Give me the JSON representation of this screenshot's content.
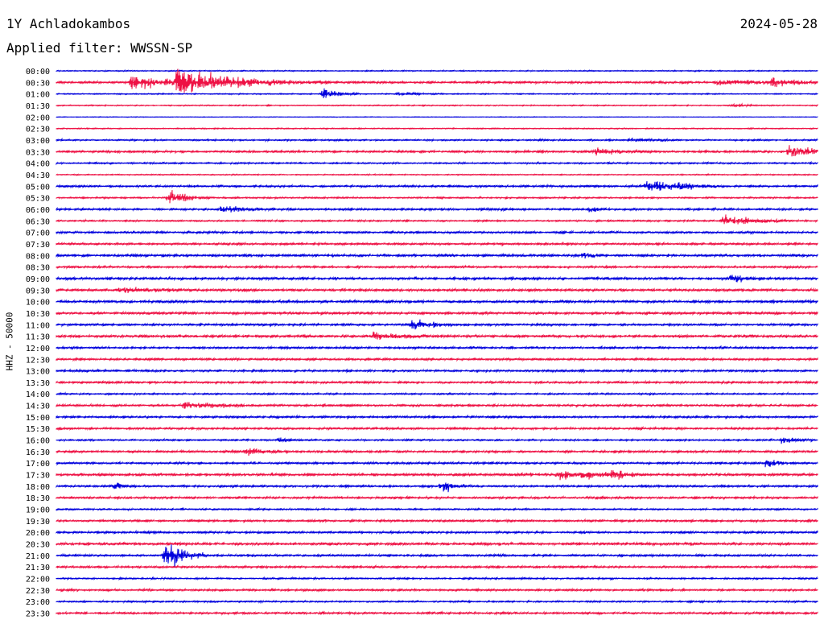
{
  "header": {
    "station": "1Y Achladokambos",
    "date": "2024-05-28",
    "filter": "Applied filter: WWSSN-SP"
  },
  "chart_data": {
    "type": "line",
    "title": "1Y Achladokambos",
    "ylabel": "HHZ - 50000",
    "colors": [
      "#0000dd",
      "#ee1144"
    ],
    "tick_labels": [
      "00:00",
      "00:30",
      "01:00",
      "01:30",
      "02:00",
      "02:30",
      "03:00",
      "03:30",
      "04:00",
      "04:30",
      "05:00",
      "05:30",
      "06:00",
      "06:30",
      "07:00",
      "07:30",
      "08:00",
      "08:30",
      "09:00",
      "09:30",
      "10:00",
      "10:30",
      "11:00",
      "11:30",
      "12:00",
      "12:30",
      "13:00",
      "13:30",
      "14:00",
      "14:30",
      "15:00",
      "15:30",
      "16:00",
      "16:30",
      "17:00",
      "17:30",
      "18:00",
      "18:30",
      "19:00",
      "19:30",
      "20:00",
      "20:30",
      "21:00",
      "21:30",
      "22:00",
      "22:30",
      "23:00",
      "23:30"
    ],
    "x_unit": "minutes within 30-minute trace",
    "xlim": [
      0,
      30
    ],
    "noise_level": [
      1,
      2,
      1,
      1,
      0.5,
      1,
      1.5,
      2,
      1.5,
      1,
      2,
      1.5,
      2,
      1.5,
      2,
      2,
      2.5,
      2,
      2.5,
      2.5,
      2.5,
      2.5,
      2,
      2.5,
      2,
      2,
      2,
      2,
      1.5,
      2,
      2,
      2,
      1.5,
      2,
      2,
      2.5,
      2,
      2,
      1.5,
      2,
      2,
      2.5,
      2,
      2,
      1.5,
      2,
      1.5,
      2
    ],
    "events": [
      {
        "trace": "00:30",
        "t": 4.8,
        "amp": 22,
        "dur": 2.0
      },
      {
        "trace": "00:30",
        "t": 3.0,
        "amp": 14,
        "dur": 1.2
      },
      {
        "trace": "00:30",
        "t": 28.2,
        "amp": 7,
        "dur": 0.8
      },
      {
        "trace": "00:30",
        "t": 26.0,
        "amp": 3,
        "dur": 3.0
      },
      {
        "trace": "01:00",
        "t": 10.5,
        "amp": 9,
        "dur": 0.5
      },
      {
        "trace": "01:00",
        "t": 13.5,
        "amp": 3,
        "dur": 0.6
      },
      {
        "trace": "01:30",
        "t": 26.7,
        "amp": 3,
        "dur": 0.5
      },
      {
        "trace": "03:00",
        "t": 22.6,
        "amp": 3,
        "dur": 0.8
      },
      {
        "trace": "03:30",
        "t": 21.3,
        "amp": 6,
        "dur": 0.8
      },
      {
        "trace": "03:30",
        "t": 28.9,
        "amp": 12,
        "dur": 0.8
      },
      {
        "trace": "05:00",
        "t": 23.3,
        "amp": 11,
        "dur": 1.0
      },
      {
        "trace": "05:00",
        "t": 24.6,
        "amp": 6,
        "dur": 0.5
      },
      {
        "trace": "05:30",
        "t": 4.4,
        "amp": 14,
        "dur": 0.6
      },
      {
        "trace": "06:00",
        "t": 6.5,
        "amp": 6,
        "dur": 0.8
      },
      {
        "trace": "06:00",
        "t": 21.0,
        "amp": 5,
        "dur": 0.3
      },
      {
        "trace": "06:30",
        "t": 26.3,
        "amp": 10,
        "dur": 1.0
      },
      {
        "trace": "08:00",
        "t": 20.8,
        "amp": 5,
        "dur": 0.3
      },
      {
        "trace": "09:00",
        "t": 26.6,
        "amp": 8,
        "dur": 0.5
      },
      {
        "trace": "09:30",
        "t": 2.5,
        "amp": 5,
        "dur": 1.0
      },
      {
        "trace": "11:00",
        "t": 14.0,
        "amp": 9,
        "dur": 0.7
      },
      {
        "trace": "11:30",
        "t": 12.5,
        "amp": 6,
        "dur": 1.0
      },
      {
        "trace": "14:30",
        "t": 5.0,
        "amp": 7,
        "dur": 1.0
      },
      {
        "trace": "16:00",
        "t": 28.6,
        "amp": 8,
        "dur": 0.4
      },
      {
        "trace": "16:00",
        "t": 8.8,
        "amp": 4,
        "dur": 0.3
      },
      {
        "trace": "16:30",
        "t": 7.5,
        "amp": 9,
        "dur": 0.6
      },
      {
        "trace": "17:00",
        "t": 28.0,
        "amp": 9,
        "dur": 0.4
      },
      {
        "trace": "17:30",
        "t": 19.8,
        "amp": 11,
        "dur": 0.5
      },
      {
        "trace": "17:30",
        "t": 20.8,
        "amp": 6,
        "dur": 0.6
      },
      {
        "trace": "17:30",
        "t": 21.9,
        "amp": 11,
        "dur": 0.5
      },
      {
        "trace": "18:00",
        "t": 15.2,
        "amp": 12,
        "dur": 0.4
      },
      {
        "trace": "18:00",
        "t": 2.3,
        "amp": 7,
        "dur": 0.3
      },
      {
        "trace": "21:00",
        "t": 4.3,
        "amp": 27,
        "dur": 0.6
      }
    ]
  }
}
